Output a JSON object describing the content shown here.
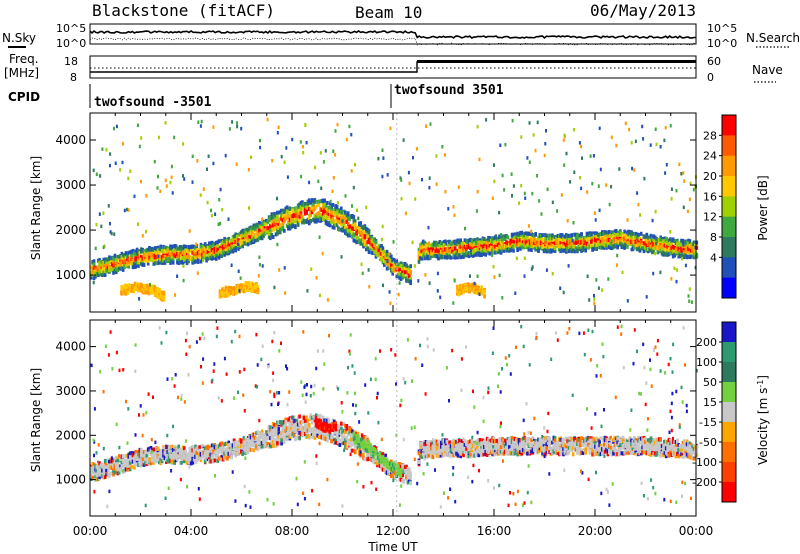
{
  "header": {
    "station": "Blackstone (fitACF)",
    "beam": "Beam 10",
    "date": "06/May/2013"
  },
  "status_panels": {
    "nsky_label": "N.Sky",
    "nsearch_label": "N.Search",
    "noise_ticks": [
      "10^5",
      "10^0"
    ],
    "freq_label": "Freq.",
    "freq_unit": "[MHz]",
    "freq_ticks": [
      "18",
      "8"
    ],
    "nave_label": "Nave",
    "nave_ticks": [
      "60",
      "0"
    ],
    "cpid_label": "CPID",
    "cpid_segments": [
      {
        "name": "twofsound -3501",
        "start_hour": 0,
        "end_hour": 12.9
      },
      {
        "name": "twofsound 3501",
        "start_hour": 12.9,
        "end_hour": 24
      }
    ]
  },
  "chart_data": [
    {
      "type": "heatmap",
      "title": "",
      "xlabel": "Time UT",
      "ylabel": "Slant Range [km]",
      "x_ticks": [
        "00:00",
        "04:00",
        "08:00",
        "12:00",
        "16:00",
        "20:00",
        "00:00"
      ],
      "xlim_hours": [
        0,
        24
      ],
      "ylim_km": [
        180,
        4600
      ],
      "y_ticks": [
        1000,
        2000,
        3000,
        4000
      ],
      "colorbar": {
        "label": "Power [dB]",
        "ticks": [
          "28",
          "24",
          "20",
          "16",
          "12",
          "8",
          "4"
        ],
        "colors": [
          "#ff0000",
          "#ff5a00",
          "#ff9a00",
          "#ffc800",
          "#a0d000",
          "#3fa83f",
          "#2e7a5e",
          "#2050b8",
          "#0000ff"
        ]
      },
      "echo_bands": [
        {
          "label": "main",
          "hours": [
            0,
            1,
            2,
            3,
            4,
            5,
            6,
            7,
            8,
            9,
            10,
            11,
            12,
            12.9,
            13,
            14,
            15,
            16,
            17,
            18,
            19,
            20,
            21,
            22,
            23,
            24
          ],
          "center_km": [
            1150,
            1300,
            1450,
            1500,
            1500,
            1600,
            1850,
            2100,
            2350,
            2500,
            2250,
            1800,
            1200,
            1000,
            1600,
            1600,
            1650,
            1700,
            1800,
            1750,
            1750,
            1800,
            1850,
            1750,
            1650,
            1600
          ]
        },
        {
          "label": "near-range",
          "hours": [
            1.2,
            1.8,
            2.5,
            2.9
          ],
          "center_km": [
            700,
            780,
            700,
            560
          ]
        },
        {
          "label": "near-range",
          "hours": [
            5.1,
            5.6,
            6.2,
            6.6
          ],
          "center_km": [
            650,
            700,
            800,
            750
          ]
        },
        {
          "label": "near-range",
          "hours": [
            14.5,
            15.1,
            15.6
          ],
          "center_km": [
            700,
            780,
            650
          ]
        }
      ]
    },
    {
      "type": "heatmap",
      "title": "",
      "xlabel": "Time UT",
      "ylabel": "Slant Range [km]",
      "x_ticks": [
        "00:00",
        "04:00",
        "08:00",
        "12:00",
        "16:00",
        "20:00",
        "00:00"
      ],
      "xlim_hours": [
        0,
        24
      ],
      "ylim_km": [
        180,
        4600
      ],
      "y_ticks": [
        1000,
        2000,
        3000,
        4000
      ],
      "colorbar": {
        "label": "Velocity [m s^-1]",
        "ticks": [
          "200",
          "100",
          "50",
          "15",
          "-15",
          "-50",
          "-100",
          "-200"
        ],
        "colors": [
          "#1818c8",
          "#2e9a70",
          "#2e7a5e",
          "#73d040",
          "#c8c8c8",
          "#ffa500",
          "#ff7000",
          "#ff4000",
          "#ff0000"
        ]
      },
      "echo_bands": [
        {
          "label": "ground-scatter",
          "hours": [
            0,
            1,
            2,
            3,
            4,
            5,
            6,
            7,
            8,
            9,
            10,
            11,
            12,
            12.9,
            13,
            14,
            15,
            16,
            17,
            18,
            19,
            20,
            21,
            22,
            23,
            24
          ],
          "center_km": [
            1200,
            1350,
            1550,
            1600,
            1600,
            1650,
            1800,
            2000,
            2200,
            2250,
            2050,
            1700,
            1250,
            1100,
            1700,
            1750,
            1750,
            1800,
            1800,
            1800,
            1800,
            1800,
            1800,
            1800,
            1750,
            1700
          ]
        },
        {
          "label": "red-patch",
          "hours": [
            8.9,
            9.3,
            9.7
          ],
          "center_km": [
            2350,
            2200,
            2250
          ]
        },
        {
          "label": "green-arc",
          "hours": [
            10.4,
            11,
            11.6,
            12.3
          ],
          "center_km": [
            2000,
            1750,
            1450,
            1200
          ]
        }
      ]
    }
  ]
}
